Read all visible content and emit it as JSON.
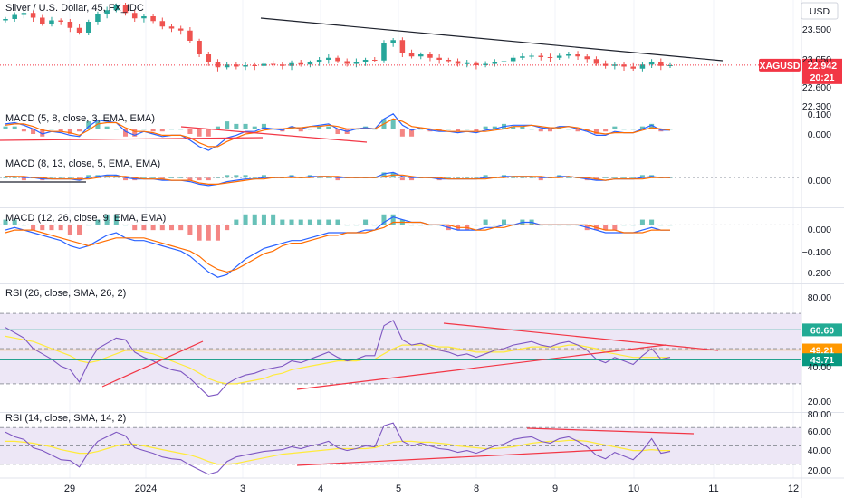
{
  "header": {
    "symbol": "Silver / U.S. Dollar, 45, FX_IDC",
    "currency": "USD"
  },
  "colors": {
    "up": "#26a69a",
    "down": "#ef5350",
    "trend_dark": "#1e222d",
    "trend_red": "#f23645",
    "macd_line": "#2962ff",
    "signal_line": "#ff6d00",
    "rsi_line": "#7e57c2",
    "rsi_ma": "#ffeb3b",
    "rsi_band": "#ede7f6",
    "level_teal": "#089981",
    "level_cyan": "#22ab94",
    "level_orange": "#ff9800",
    "badge_red": "#f23645"
  },
  "chart_data": [
    {
      "type": "candlestick",
      "title": "Silver / U.S. Dollar, 45, FX_IDC",
      "axis_ticks": [
        "23.500",
        "23.050",
        "22.600",
        "22.300"
      ],
      "ylim": [
        22.3,
        23.9
      ],
      "last_price": 22.942,
      "last_price_label": "22.942",
      "countdown": "20:21",
      "price_tag": "XAGUSD",
      "close_series": [
        23.62,
        23.68,
        23.71,
        23.64,
        23.55,
        23.6,
        23.58,
        23.49,
        23.42,
        23.58,
        23.69,
        23.75,
        23.82,
        23.71,
        23.63,
        23.66,
        23.59,
        23.51,
        23.48,
        23.45,
        23.3,
        23.1,
        22.98,
        22.91,
        22.95,
        22.92,
        22.94,
        22.93,
        22.96,
        22.95,
        22.93,
        22.97,
        22.95,
        22.98,
        23.02,
        23.05,
        23.0,
        22.96,
        22.99,
        23.02,
        23.01,
        23.26,
        23.31,
        23.12,
        23.07,
        23.1,
        23.05,
        23.02,
        23.0,
        22.96,
        22.97,
        22.94,
        22.96,
        22.98,
        23.0,
        23.05,
        23.07,
        23.08,
        23.06,
        23.05,
        23.08,
        23.1,
        23.07,
        23.03,
        22.96,
        22.93,
        22.95,
        22.92,
        22.89,
        22.95,
        22.99,
        22.93,
        22.94
      ],
      "trendlines": [
        "resistance"
      ]
    },
    {
      "type": "line",
      "title": "MACD (5, 8, close, 3, EMA, EMA)",
      "axis_ticks": [
        "0.100",
        "0.000"
      ],
      "ylim": [
        -0.22,
        0.14
      ],
      "series": [
        {
          "name": "MACD",
          "values": [
            0.04,
            0.05,
            0.03,
            0.0,
            -0.04,
            -0.02,
            -0.03,
            -0.05,
            -0.06,
            0.02,
            0.07,
            0.06,
            0.05,
            -0.02,
            -0.05,
            -0.02,
            -0.04,
            -0.06,
            -0.05,
            -0.05,
            -0.09,
            -0.14,
            -0.17,
            -0.13,
            -0.07,
            -0.05,
            -0.02,
            -0.02,
            0.01,
            0.0,
            -0.01,
            0.02,
            0.0,
            0.02,
            0.03,
            0.04,
            0.0,
            -0.02,
            0.0,
            0.01,
            0.0,
            0.08,
            0.12,
            0.03,
            -0.01,
            0.01,
            -0.01,
            -0.02,
            -0.02,
            -0.03,
            -0.02,
            -0.03,
            -0.01,
            0.0,
            0.02,
            0.03,
            0.03,
            0.03,
            0.01,
            0.0,
            0.02,
            0.02,
            0.0,
            -0.02,
            -0.05,
            -0.05,
            -0.02,
            -0.03,
            -0.03,
            0.0,
            0.03,
            -0.01,
            -0.01
          ]
        },
        {
          "name": "Signal",
          "values": [
            0.03,
            0.04,
            0.04,
            0.02,
            -0.01,
            -0.02,
            -0.02,
            -0.03,
            -0.05,
            -0.01,
            0.04,
            0.05,
            0.05,
            0.01,
            -0.02,
            -0.02,
            -0.03,
            -0.05,
            -0.05,
            -0.05,
            -0.07,
            -0.11,
            -0.14,
            -0.14,
            -0.1,
            -0.07,
            -0.04,
            -0.03,
            -0.01,
            0.0,
            0.0,
            0.01,
            0.01,
            0.02,
            0.02,
            0.03,
            0.02,
            0.0,
            0.0,
            0.0,
            0.0,
            0.04,
            0.08,
            0.06,
            0.02,
            0.01,
            0.0,
            -0.01,
            -0.02,
            -0.02,
            -0.02,
            -0.02,
            -0.02,
            -0.01,
            0.0,
            0.02,
            0.02,
            0.03,
            0.02,
            0.01,
            0.01,
            0.02,
            0.01,
            -0.01,
            -0.03,
            -0.04,
            -0.03,
            -0.03,
            -0.03,
            -0.01,
            0.01,
            0.0,
            -0.01
          ]
        }
      ]
    },
    {
      "type": "line",
      "title": "MACD (8, 13, close, 5, EMA, EMA)",
      "axis_ticks": [
        "0.000"
      ],
      "ylim": [
        -0.22,
        0.14
      ],
      "series": [
        {
          "name": "MACD",
          "values": [
            0.01,
            0.01,
            0.0,
            0.0,
            -0.01,
            -0.01,
            -0.01,
            -0.01,
            -0.02,
            0.0,
            0.01,
            0.02,
            0.02,
            0.0,
            -0.01,
            -0.01,
            -0.01,
            -0.02,
            -0.02,
            -0.02,
            -0.03,
            -0.05,
            -0.06,
            -0.05,
            -0.03,
            -0.02,
            -0.01,
            -0.01,
            0.0,
            0.0,
            0.0,
            0.01,
            0.0,
            0.01,
            0.01,
            0.01,
            0.0,
            0.0,
            0.0,
            0.0,
            0.0,
            0.03,
            0.04,
            0.01,
            0.0,
            0.0,
            0.0,
            -0.01,
            -0.01,
            -0.01,
            -0.01,
            -0.01,
            0.0,
            0.0,
            0.01,
            0.01,
            0.01,
            0.01,
            0.0,
            0.0,
            0.01,
            0.01,
            0.0,
            -0.01,
            -0.02,
            -0.02,
            -0.01,
            -0.01,
            -0.01,
            0.0,
            0.01,
            0.0,
            0.0
          ]
        },
        {
          "name": "Signal",
          "values": [
            0.01,
            0.01,
            0.01,
            0.0,
            0.0,
            -0.01,
            -0.01,
            -0.01,
            -0.01,
            -0.01,
            0.0,
            0.01,
            0.01,
            0.01,
            0.0,
            -0.01,
            -0.01,
            -0.01,
            -0.02,
            -0.02,
            -0.02,
            -0.04,
            -0.05,
            -0.05,
            -0.04,
            -0.03,
            -0.02,
            -0.01,
            -0.01,
            0.0,
            0.0,
            0.0,
            0.0,
            0.0,
            0.01,
            0.01,
            0.01,
            0.0,
            0.0,
            0.0,
            0.0,
            0.01,
            0.02,
            0.02,
            0.01,
            0.0,
            0.0,
            0.0,
            -0.01,
            -0.01,
            -0.01,
            -0.01,
            -0.01,
            0.0,
            0.0,
            0.01,
            0.01,
            0.01,
            0.01,
            0.0,
            0.0,
            0.01,
            0.0,
            0.0,
            -0.01,
            -0.02,
            -0.01,
            -0.01,
            -0.01,
            -0.01,
            0.0,
            0.0,
            0.0
          ]
        }
      ]
    },
    {
      "type": "line",
      "title": "MACD (12, 26, close, 9, EMA, EMA)",
      "axis_ticks": [
        "0.000",
        "−0.100",
        "−0.200"
      ],
      "ylim": [
        -0.22,
        0.06
      ],
      "series": [
        {
          "name": "MACD",
          "values": [
            -0.02,
            -0.01,
            -0.02,
            -0.03,
            -0.04,
            -0.05,
            -0.06,
            -0.08,
            -0.09,
            -0.08,
            -0.06,
            -0.04,
            -0.03,
            -0.05,
            -0.06,
            -0.06,
            -0.07,
            -0.08,
            -0.09,
            -0.1,
            -0.12,
            -0.15,
            -0.18,
            -0.2,
            -0.19,
            -0.16,
            -0.13,
            -0.11,
            -0.09,
            -0.08,
            -0.07,
            -0.06,
            -0.06,
            -0.05,
            -0.04,
            -0.03,
            -0.03,
            -0.03,
            -0.03,
            -0.02,
            -0.02,
            0.01,
            0.03,
            0.02,
            0.01,
            0.01,
            0.0,
            0.0,
            -0.01,
            -0.02,
            -0.02,
            -0.02,
            -0.01,
            -0.01,
            0.0,
            0.0,
            0.01,
            0.01,
            0.0,
            0.0,
            0.0,
            0.0,
            0.0,
            -0.01,
            -0.02,
            -0.03,
            -0.03,
            -0.03,
            -0.03,
            -0.02,
            -0.01,
            -0.02,
            -0.02
          ]
        },
        {
          "name": "Signal",
          "values": [
            -0.03,
            -0.02,
            -0.02,
            -0.02,
            -0.03,
            -0.04,
            -0.05,
            -0.06,
            -0.07,
            -0.08,
            -0.07,
            -0.06,
            -0.05,
            -0.05,
            -0.05,
            -0.05,
            -0.06,
            -0.07,
            -0.08,
            -0.09,
            -0.1,
            -0.12,
            -0.15,
            -0.17,
            -0.18,
            -0.17,
            -0.15,
            -0.13,
            -0.11,
            -0.1,
            -0.08,
            -0.07,
            -0.07,
            -0.06,
            -0.05,
            -0.04,
            -0.04,
            -0.03,
            -0.03,
            -0.03,
            -0.02,
            -0.01,
            0.01,
            0.01,
            0.01,
            0.01,
            0.0,
            0.0,
            0.0,
            -0.01,
            -0.01,
            -0.02,
            -0.02,
            -0.01,
            -0.01,
            0.0,
            0.0,
            0.0,
            0.0,
            0.0,
            0.0,
            0.0,
            0.0,
            0.0,
            -0.01,
            -0.02,
            -0.02,
            -0.03,
            -0.03,
            -0.03,
            -0.02,
            -0.02,
            -0.02
          ]
        }
      ]
    },
    {
      "type": "line",
      "title": "RSI (26, close, SMA, 26, 2)",
      "axis_ticks": [
        "80.00",
        "40.00",
        "20.00"
      ],
      "ylim": [
        14,
        86
      ],
      "levels": [
        {
          "label": "60.60",
          "value": 60.6
        },
        {
          "label": "49.21",
          "value": 49.21
        },
        {
          "label": "43.71",
          "value": 43.71
        }
      ],
      "series": [
        {
          "name": "RSI",
          "values": [
            62,
            59,
            56,
            50,
            47,
            44,
            40,
            38,
            31,
            42,
            50,
            53,
            56,
            55,
            48,
            45,
            43,
            40,
            38,
            37,
            33,
            28,
            23,
            24,
            30,
            33,
            35,
            36,
            38,
            39,
            40,
            43,
            42,
            44,
            46,
            48,
            45,
            43,
            44,
            46,
            46,
            63,
            66,
            55,
            52,
            53,
            51,
            49,
            48,
            46,
            47,
            45,
            47,
            49,
            50,
            52,
            53,
            54,
            52,
            51,
            53,
            54,
            52,
            49,
            44,
            42,
            45,
            43,
            41,
            46,
            50,
            44,
            45
          ]
        },
        {
          "name": "MA",
          "values": [
            57,
            56,
            55,
            54,
            52,
            50,
            48,
            46,
            43,
            42,
            43,
            45,
            47,
            49,
            49,
            48,
            47,
            45,
            43,
            41,
            39,
            36,
            33,
            31,
            30,
            30,
            31,
            32,
            33,
            35,
            36,
            38,
            39,
            40,
            41,
            42,
            43,
            43,
            43,
            44,
            44,
            47,
            50,
            52,
            52,
            52,
            52,
            51,
            51,
            50,
            49,
            48,
            48,
            48,
            48,
            49,
            50,
            51,
            51,
            51,
            51,
            52,
            52,
            51,
            50,
            48,
            47,
            46,
            45,
            45,
            45,
            45,
            45
          ]
        }
      ]
    },
    {
      "type": "line",
      "title": "RSI (14, close, SMA, 14, 2)",
      "axis_ticks": [
        "80.00",
        "60.00",
        "40.00",
        "20.00"
      ],
      "ylim": [
        15,
        85
      ],
      "series": [
        {
          "name": "RSI",
          "values": [
            65,
            60,
            57,
            48,
            45,
            40,
            35,
            34,
            27,
            43,
            55,
            60,
            65,
            61,
            48,
            45,
            42,
            38,
            36,
            35,
            29,
            24,
            19,
            22,
            33,
            38,
            40,
            42,
            44,
            45,
            46,
            49,
            47,
            50,
            52,
            55,
            48,
            45,
            47,
            50,
            49,
            72,
            75,
            55,
            50,
            53,
            50,
            47,
            46,
            43,
            45,
            42,
            46,
            50,
            52,
            57,
            59,
            60,
            55,
            53,
            58,
            60,
            55,
            49,
            40,
            36,
            43,
            39,
            35,
            45,
            58,
            42,
            44
          ]
        },
        {
          "name": "MA",
          "values": [
            55,
            55,
            54,
            53,
            51,
            49,
            46,
            44,
            42,
            42,
            44,
            47,
            50,
            52,
            52,
            50,
            48,
            46,
            44,
            42,
            40,
            37,
            33,
            30,
            30,
            31,
            33,
            35,
            37,
            39,
            41,
            42,
            43,
            44,
            45,
            46,
            47,
            47,
            47,
            47,
            48,
            51,
            54,
            55,
            55,
            54,
            54,
            53,
            52,
            50,
            49,
            48,
            47,
            47,
            48,
            49,
            51,
            53,
            54,
            55,
            55,
            56,
            56,
            55,
            53,
            51,
            49,
            47,
            45,
            45,
            46,
            45,
            45
          ]
        }
      ]
    }
  ],
  "x_axis": {
    "tick_labels": [
      "29",
      "2024",
      "3",
      "4",
      "5",
      "8",
      "9",
      "10",
      "11",
      "12"
    ]
  }
}
